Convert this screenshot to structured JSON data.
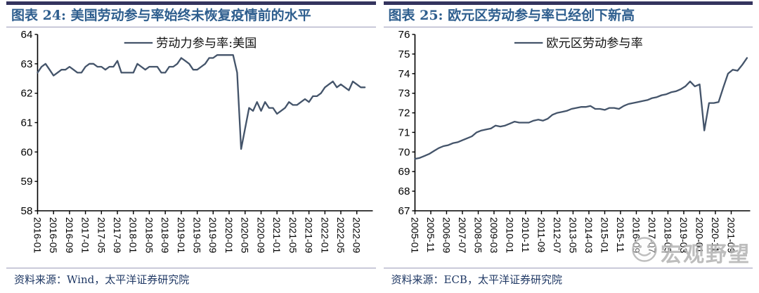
{
  "colors": {
    "top_bar": "#34345E",
    "figure_title": "#2E5E8E",
    "divider": "#9A9AB8",
    "source_text": "#1F3864",
    "series_line": "#44546A",
    "axis": "#000000",
    "watermark": "#B5B5B5"
  },
  "panels": [
    {
      "title": "图表 24: 美国劳动参与率始终未恢复疫情前的水平",
      "source": "资料来源：Wind，太平洋证券研究院"
    },
    {
      "title": "图表 25: 欧元区劳动参与率已经创下新高",
      "source": "资料来源：ECB，太平洋证券研究院"
    }
  ],
  "watermark": {
    "text": "宏观野望",
    "icon": "smiley-face"
  },
  "chart_data": [
    {
      "type": "line",
      "title": "图表 24: 美国劳动参与率始终未恢复疫情前的水平",
      "legend": "劳动力参与率:美国",
      "ylabel": "",
      "xlabel": "",
      "ylim": [
        58,
        64
      ],
      "yticks": [
        58,
        59,
        60,
        61,
        62,
        63,
        64
      ],
      "x_start": "2016-01",
      "frequency": "monthly",
      "months_per_point": 1,
      "months_per_tick": 4,
      "x_tick_labels": [
        "2016-01",
        "2016-05",
        "2016-09",
        "2017-01",
        "2017-05",
        "2017-09",
        "2018-01",
        "2018-05",
        "2018-09",
        "2019-01",
        "2019-05",
        "2019-09",
        "2020-01",
        "2020-05",
        "2020-09",
        "2021-01",
        "2021-05",
        "2021-09",
        "2022-01",
        "2022-05",
        "2022-09"
      ],
      "values": [
        62.7,
        62.9,
        63.0,
        62.8,
        62.6,
        62.7,
        62.8,
        62.8,
        62.9,
        62.8,
        62.7,
        62.7,
        62.9,
        63.0,
        63.0,
        62.9,
        62.9,
        62.8,
        62.9,
        62.9,
        63.1,
        62.7,
        62.7,
        62.7,
        62.7,
        63.0,
        62.9,
        62.8,
        62.9,
        62.9,
        62.9,
        62.7,
        62.7,
        62.9,
        62.9,
        63.0,
        63.2,
        63.1,
        63.0,
        62.8,
        62.8,
        62.9,
        63.0,
        63.2,
        63.2,
        63.3,
        63.3,
        63.3,
        63.3,
        63.3,
        62.7,
        60.1,
        60.8,
        61.5,
        61.4,
        61.7,
        61.4,
        61.7,
        61.5,
        61.5,
        61.3,
        61.4,
        61.5,
        61.7,
        61.6,
        61.6,
        61.7,
        61.8,
        61.7,
        61.9,
        61.9,
        62.0,
        62.2,
        62.3,
        62.4,
        62.2,
        62.3,
        62.2,
        62.1,
        62.4,
        62.3,
        62.2,
        62.2
      ],
      "line_color": "#44546A",
      "legend_position": "top-center",
      "grid": false
    },
    {
      "type": "line",
      "title": "图表 25: 欧元区劳动参与率已经创下新高",
      "legend": "欧元区劳动参与率",
      "ylabel": "",
      "xlabel": "",
      "ylim": [
        67,
        76
      ],
      "yticks": [
        67,
        68,
        69,
        70,
        71,
        72,
        73,
        74,
        75,
        76
      ],
      "x_start": "2005-01",
      "frequency": "quarterly",
      "months_per_point": 3,
      "months_per_tick": 10,
      "x_tick_labels": [
        "2005-01",
        "2005-11",
        "2006-09",
        "2007-07",
        "2008-05",
        "2009-03",
        "2010-01",
        "2010-11",
        "2011-09",
        "2012-07",
        "2013-05",
        "2014-03",
        "2015-01",
        "2015-11",
        "2016-09",
        "2017-07",
        "2018-05",
        "2019-03",
        "2020-01",
        "2020-11",
        "2021-09"
      ],
      "values": [
        69.65,
        69.7,
        69.8,
        69.9,
        70.05,
        70.2,
        70.3,
        70.35,
        70.45,
        70.5,
        70.6,
        70.7,
        70.8,
        71.0,
        71.1,
        71.15,
        71.2,
        71.35,
        71.3,
        71.35,
        71.45,
        71.55,
        71.5,
        71.5,
        71.5,
        71.6,
        71.65,
        71.6,
        71.7,
        71.9,
        72.0,
        72.05,
        72.1,
        72.2,
        72.25,
        72.3,
        72.3,
        72.35,
        72.2,
        72.2,
        72.15,
        72.25,
        72.25,
        72.2,
        72.35,
        72.45,
        72.5,
        72.55,
        72.6,
        72.65,
        72.75,
        72.8,
        72.9,
        72.95,
        73.05,
        73.1,
        73.2,
        73.35,
        73.6,
        73.35,
        73.45,
        71.1,
        72.5,
        72.5,
        72.55,
        73.3,
        74.0,
        74.2,
        74.15,
        74.45,
        74.8
      ],
      "line_color": "#44546A",
      "legend_position": "top-center",
      "grid": false
    }
  ]
}
